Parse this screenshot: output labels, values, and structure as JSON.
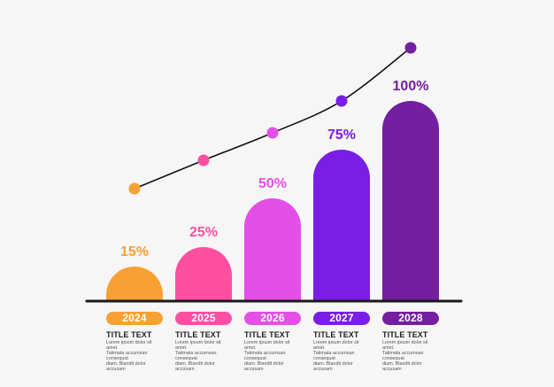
{
  "chart_data": {
    "type": "bar",
    "categories": [
      "2024",
      "2025",
      "2026",
      "2027",
      "2028"
    ],
    "values": [
      15,
      25,
      50,
      75,
      100
    ],
    "value_labels": [
      "15%",
      "25%",
      "50%",
      "75%",
      "100%"
    ],
    "colors": [
      "#f7a034",
      "#ff4fa3",
      "#e44fe8",
      "#7a1de6",
      "#731fa0"
    ],
    "ylim": [
      0,
      100
    ],
    "trend_line": true,
    "grid": false,
    "legend": "none"
  },
  "columns": [
    {
      "year": "2024",
      "title": "TITLE TEXT",
      "desc": "Lorem ipsum dolor sit amet.\nTatimata accumsan consequat\ndiam. Blandit dolor accusam"
    },
    {
      "year": "2025",
      "title": "TITLE TEXT",
      "desc": "Lorem ipsum dolor sit amet.\nTatimata accumsan consequat\ndiam. Blandit dolor accusam"
    },
    {
      "year": "2026",
      "title": "TITLE TEXT",
      "desc": "Lorem ipsum dolor sit amet.\nTatimata accumsan consequat\ndiam. Blandit dolor accusam"
    },
    {
      "year": "2027",
      "title": "TITLE TEXT",
      "desc": "Lorem ipsum dolor sit amet.\nTatimata accumsan consequat\ndiam. Blandit dolor accusam"
    },
    {
      "year": "2028",
      "title": "TITLE TEXT",
      "desc": "Lorem ipsum dolor sit amet.\nTatimata accumsan consequat\ndiam. Blandit dolor accusam"
    }
  ]
}
